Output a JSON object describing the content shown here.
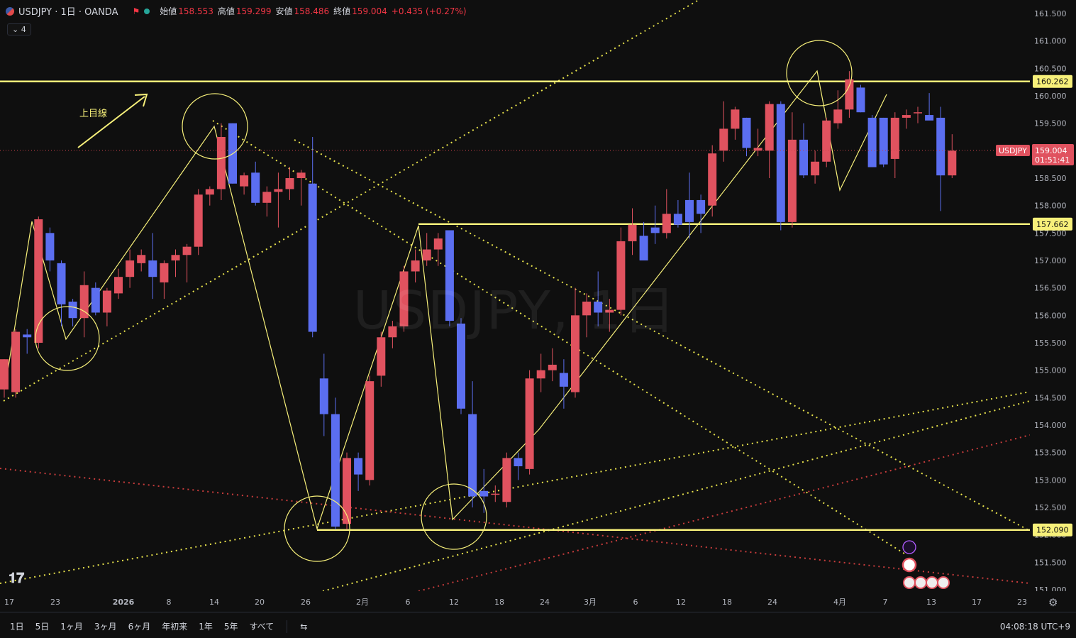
{
  "legend": {
    "symbol": "USDJPY · 1日 · OANDA",
    "open_label": "始値",
    "open": "158.553",
    "high_label": "高値",
    "high": "159.299",
    "low_label": "安値",
    "low": "158.486",
    "close_label": "終値",
    "close": "159.004",
    "change": "+0.435 (+0.27%)"
  },
  "indicator_toggle": "4",
  "watermark": "USDJPY, 1日",
  "price_tag": {
    "symbol": "USDJPY",
    "price": "159.004",
    "countdown": "01:51:41"
  },
  "level_tags": [
    "160.262",
    "157.662",
    "152.090"
  ],
  "annotation": "上目線",
  "range_buttons": [
    "1日",
    "5日",
    "1ヶ月",
    "3ヶ月",
    "6ヶ月",
    "年初来",
    "1年",
    "5年",
    "すべて"
  ],
  "clock": "04:08:18 UTC+9",
  "colors": {
    "up": "#e0525f",
    "down": "#5b6ef0",
    "level": "#f7f07a",
    "bg": "#0f0f0f"
  },
  "chart_data": {
    "type": "candlestick",
    "symbol": "USDJPY",
    "interval": "1D",
    "ylim": [
      150.95,
      161.8
    ],
    "y_ticks": [
      "151.000",
      "151.500",
      "152.000",
      "152.500",
      "153.000",
      "153.500",
      "154.000",
      "154.500",
      "155.000",
      "155.500",
      "156.000",
      "156.500",
      "157.000",
      "157.500",
      "158.000",
      "158.500",
      "159.000",
      "159.500",
      "160.000",
      "160.500",
      "161.000",
      "161.500"
    ],
    "x_ticks": [
      "17",
      "23",
      "2026",
      "8",
      "14",
      "20",
      "26",
      "2月",
      "6",
      "12",
      "18",
      "24",
      "3月",
      "6",
      "12",
      "18",
      "24",
      "4月",
      "7",
      "13",
      "17",
      "23"
    ],
    "horizontal_levels": [
      160.262,
      157.662,
      152.09
    ],
    "candles": [
      [
        154.65,
        155.2,
        154.5,
        155.2
      ],
      [
        154.6,
        155.75,
        154.5,
        155.7
      ],
      [
        155.65,
        155.75,
        155.3,
        155.6
      ],
      [
        155.5,
        157.8,
        155.4,
        157.75
      ],
      [
        157.5,
        157.6,
        156.8,
        157.0
      ],
      [
        156.95,
        157.0,
        155.8,
        156.2
      ],
      [
        156.25,
        156.3,
        155.8,
        155.95
      ],
      [
        155.95,
        156.8,
        155.6,
        156.55
      ],
      [
        156.5,
        156.6,
        156.0,
        156.05
      ],
      [
        156.05,
        156.5,
        155.8,
        156.45
      ],
      [
        156.4,
        156.85,
        156.3,
        156.7
      ],
      [
        156.7,
        157.2,
        156.5,
        157.0
      ],
      [
        156.95,
        157.2,
        156.8,
        157.1
      ],
      [
        157.0,
        157.5,
        156.3,
        156.7
      ],
      [
        156.6,
        157.0,
        156.3,
        156.95
      ],
      [
        157.0,
        157.2,
        156.7,
        157.1
      ],
      [
        157.1,
        157.3,
        156.6,
        157.25
      ],
      [
        157.25,
        158.3,
        157.1,
        158.2
      ],
      [
        158.2,
        158.35,
        158.0,
        158.3
      ],
      [
        158.3,
        159.5,
        158.1,
        159.25
      ],
      [
        159.5,
        159.5,
        158.4,
        158.4
      ],
      [
        158.35,
        158.6,
        158.2,
        158.55
      ],
      [
        158.6,
        158.8,
        158.0,
        158.05
      ],
      [
        158.05,
        158.35,
        157.8,
        158.25
      ],
      [
        158.25,
        158.6,
        157.6,
        158.3
      ],
      [
        158.3,
        158.7,
        158.1,
        158.5
      ],
      [
        158.5,
        158.65,
        158.0,
        158.6
      ],
      [
        158.4,
        159.25,
        155.6,
        155.7
      ],
      [
        154.85,
        155.3,
        153.8,
        154.2
      ],
      [
        154.2,
        154.5,
        152.1,
        152.15
      ],
      [
        152.2,
        153.5,
        152.1,
        153.4
      ],
      [
        153.4,
        153.5,
        152.8,
        153.1
      ],
      [
        153.0,
        154.9,
        152.9,
        154.8
      ],
      [
        154.9,
        155.7,
        154.7,
        155.6
      ],
      [
        155.6,
        155.9,
        155.4,
        155.8
      ],
      [
        155.8,
        156.9,
        155.7,
        156.8
      ],
      [
        156.8,
        157.2,
        156.6,
        157.0
      ],
      [
        157.0,
        157.5,
        156.9,
        157.2
      ],
      [
        157.2,
        157.5,
        156.9,
        157.4
      ],
      [
        157.55,
        157.55,
        155.8,
        155.9
      ],
      [
        155.85,
        155.95,
        154.2,
        154.3
      ],
      [
        154.2,
        154.8,
        152.5,
        152.7
      ],
      [
        152.8,
        153.2,
        152.4,
        152.7
      ],
      [
        152.75,
        152.9,
        152.6,
        152.75
      ],
      [
        152.6,
        153.5,
        152.5,
        153.4
      ],
      [
        153.4,
        153.5,
        153.0,
        153.25
      ],
      [
        153.2,
        155.0,
        153.1,
        154.85
      ],
      [
        154.85,
        155.3,
        154.6,
        155.0
      ],
      [
        155.0,
        155.4,
        154.8,
        155.1
      ],
      [
        154.95,
        155.2,
        154.3,
        154.7
      ],
      [
        154.6,
        156.5,
        154.5,
        156.0
      ],
      [
        156.0,
        156.4,
        155.6,
        156.25
      ],
      [
        156.25,
        156.8,
        155.8,
        156.05
      ],
      [
        156.05,
        156.3,
        155.7,
        156.1
      ],
      [
        156.1,
        157.6,
        156.0,
        157.35
      ],
      [
        157.35,
        157.95,
        157.1,
        157.65
      ],
      [
        157.45,
        157.7,
        157.0,
        157.0
      ],
      [
        157.6,
        158.0,
        157.3,
        157.5
      ],
      [
        157.5,
        158.3,
        157.4,
        157.85
      ],
      [
        157.85,
        158.1,
        157.6,
        157.65
      ],
      [
        158.1,
        158.6,
        157.4,
        157.7
      ],
      [
        158.1,
        158.2,
        157.5,
        157.85
      ],
      [
        158.0,
        159.1,
        157.8,
        158.95
      ],
      [
        159.0,
        159.9,
        158.8,
        159.4
      ],
      [
        159.4,
        159.8,
        159.2,
        159.75
      ],
      [
        159.6,
        159.6,
        158.9,
        159.05
      ],
      [
        159.0,
        159.4,
        158.9,
        159.05
      ],
      [
        159.0,
        159.9,
        158.5,
        159.85
      ],
      [
        159.85,
        159.9,
        157.55,
        157.7
      ],
      [
        157.7,
        159.7,
        157.6,
        159.2
      ],
      [
        159.2,
        159.5,
        158.5,
        158.55
      ],
      [
        158.55,
        159.0,
        158.4,
        158.8
      ],
      [
        158.8,
        159.6,
        158.7,
        159.55
      ],
      [
        159.5,
        160.1,
        159.4,
        159.75
      ],
      [
        159.75,
        160.45,
        159.6,
        160.3
      ],
      [
        160.15,
        160.2,
        159.7,
        159.7
      ],
      [
        159.6,
        159.65,
        158.7,
        158.7
      ],
      [
        159.6,
        159.6,
        158.7,
        158.75
      ],
      [
        158.85,
        159.7,
        158.5,
        159.6
      ],
      [
        159.6,
        159.75,
        159.4,
        159.65
      ],
      [
        159.7,
        159.8,
        159.5,
        159.7
      ],
      [
        159.65,
        160.05,
        159.6,
        159.55
      ],
      [
        159.6,
        159.8,
        157.9,
        158.55
      ],
      [
        158.55,
        159.3,
        158.5,
        159.0
      ]
    ]
  }
}
